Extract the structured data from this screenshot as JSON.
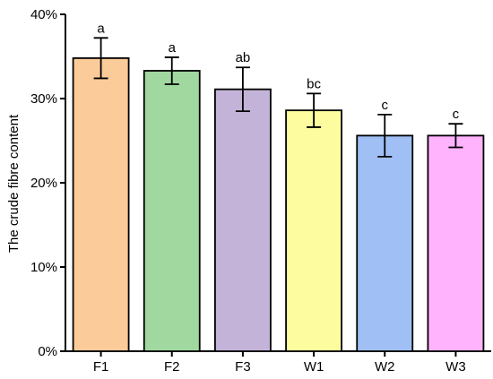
{
  "chart_data": {
    "type": "bar",
    "title": "",
    "xlabel": "",
    "ylabel": "The crude fibre content",
    "ylim": [
      0,
      40
    ],
    "yticks": [
      0,
      10,
      20,
      30,
      40
    ],
    "ytick_labels": [
      "0%",
      "10%",
      "20%",
      "30%",
      "40%"
    ],
    "grid": false,
    "legend": "none",
    "categories": [
      "F1",
      "F2",
      "F3",
      "W1",
      "W2",
      "W3"
    ],
    "values": [
      34.8,
      33.3,
      31.1,
      28.6,
      25.6,
      25.6
    ],
    "errors": [
      2.4,
      1.6,
      2.6,
      2.0,
      2.5,
      1.4
    ],
    "significance": [
      "a",
      "a",
      "ab",
      "bc",
      "c",
      "c"
    ],
    "colors": [
      "#FBCB99",
      "#A0D89F",
      "#C4B3D8",
      "#FDFC9E",
      "#9FBFF5",
      "#FFB3FD"
    ],
    "bar_edge_color": "#000000",
    "axis_color": "#000000"
  }
}
